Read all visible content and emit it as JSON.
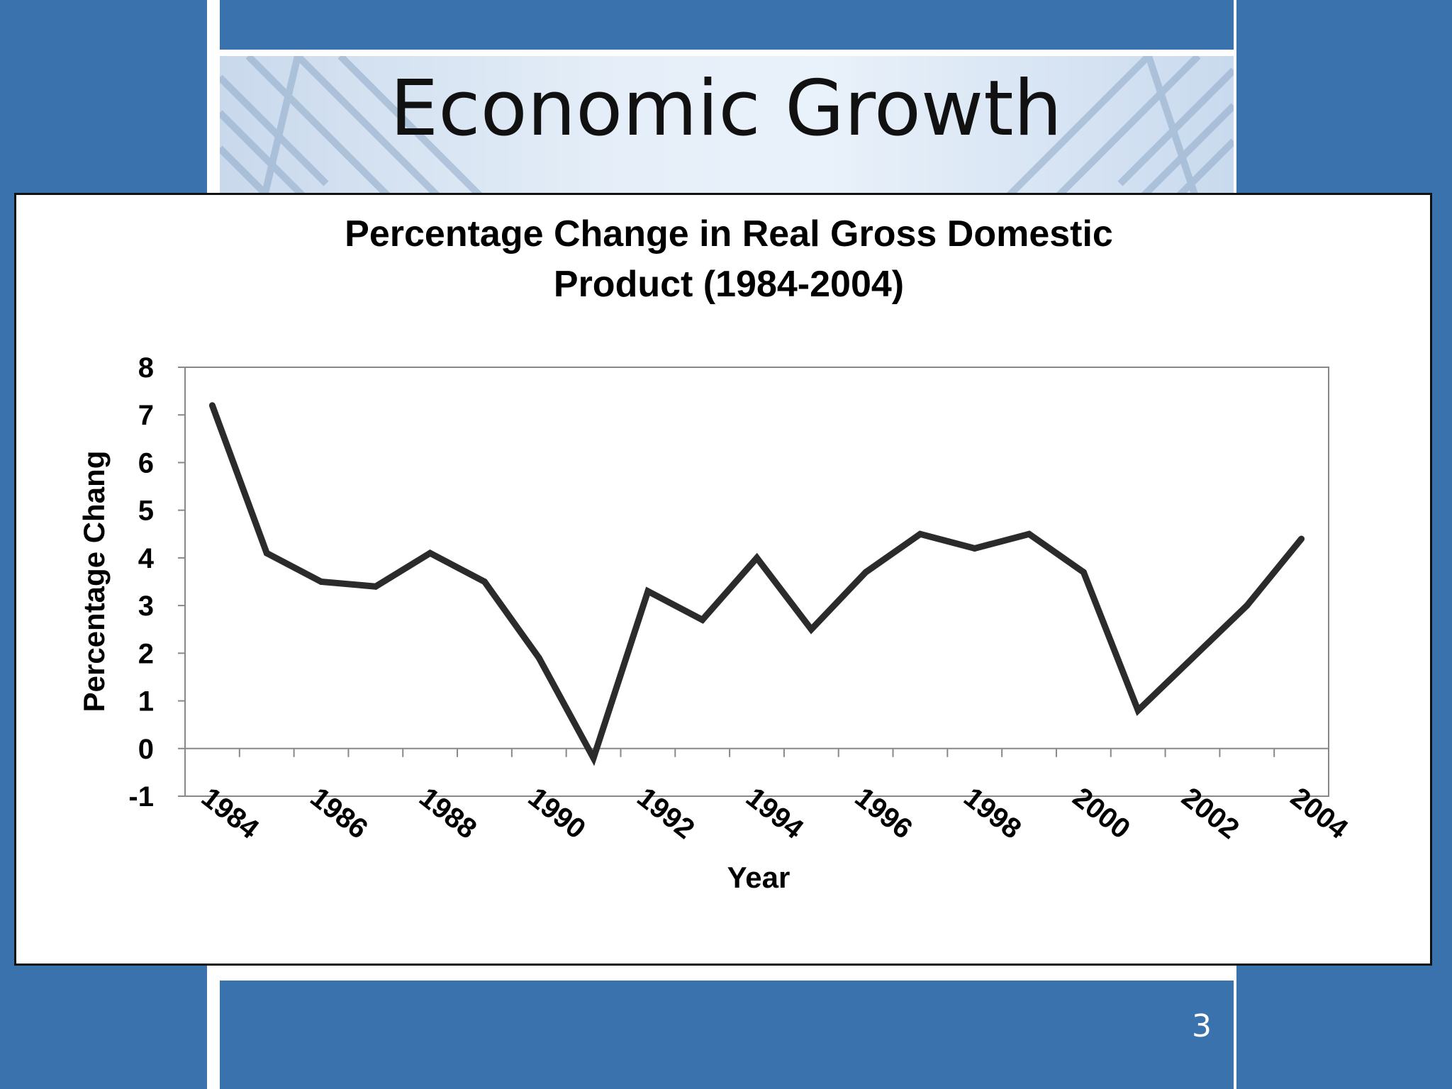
{
  "slide": {
    "title": "Economic Growth",
    "page_number": "3",
    "colors": {
      "background": "#3a72ae",
      "panel": "#ffffff",
      "line": "#2b2b2b"
    }
  },
  "chart_data": {
    "type": "line",
    "title_lines": [
      "Percentage Change in Real Gross Domestic",
      "Product (1984-2004)"
    ],
    "xlabel": "Year",
    "ylabel": "Percentage Chang",
    "ylim": [
      -1,
      8
    ],
    "yticks": [
      -1,
      0,
      1,
      2,
      3,
      4,
      5,
      6,
      7,
      8
    ],
    "x_tick_labels": [
      "1984",
      "1986",
      "1988",
      "1990",
      "1992",
      "1994",
      "1996",
      "1998",
      "2000",
      "2002",
      "2004"
    ],
    "grid": false,
    "x": [
      1984,
      1985,
      1986,
      1987,
      1988,
      1989,
      1990,
      1991,
      1992,
      1993,
      1994,
      1995,
      1996,
      1997,
      1998,
      1999,
      2000,
      2001,
      2002,
      2003,
      2004
    ],
    "values": [
      7.2,
      4.1,
      3.5,
      3.4,
      4.1,
      3.5,
      1.9,
      -0.2,
      3.3,
      2.7,
      4.0,
      2.5,
      3.7,
      4.5,
      4.2,
      4.5,
      3.7,
      0.8,
      1.9,
      3.0,
      4.4
    ]
  }
}
